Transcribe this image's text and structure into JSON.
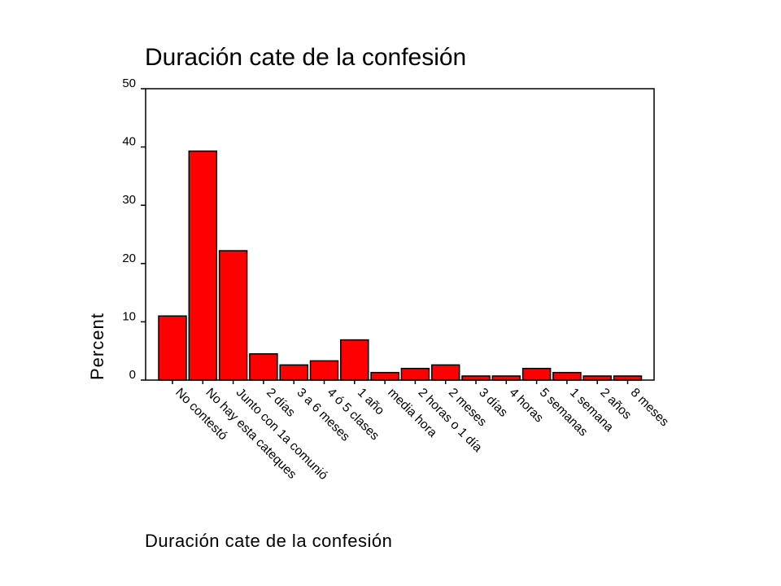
{
  "chart_data": {
    "type": "bar",
    "title": "Duración cate de la confesión",
    "xlabel": "Duración cate de la confesión",
    "ylabel": "Percent",
    "ylim": [
      0,
      50
    ],
    "yticks": [
      0,
      10,
      20,
      30,
      40,
      50
    ],
    "grid": false,
    "legend": "none",
    "bar_color": "#ff0000",
    "categories": [
      "No contestó",
      "No hay esta cateques",
      "Junto con 1a comunió",
      "2 días",
      "3 a 6 meses",
      "4 ó 5 clases",
      "1 año",
      "media hora",
      "2 horas o 1 día",
      "2 meses",
      "3 días",
      "4 horas",
      "5 semanas",
      "1 semana",
      "2 años",
      "8 meses"
    ],
    "values": [
      11.0,
      39.3,
      22.2,
      4.5,
      2.6,
      3.3,
      6.9,
      1.3,
      2.0,
      2.6,
      0.7,
      0.7,
      2.0,
      1.3,
      0.7,
      0.7
    ]
  }
}
